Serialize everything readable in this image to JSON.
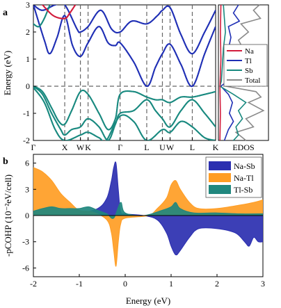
{
  "colors": {
    "na": "#d21c3c",
    "tl": "#1f2fb5",
    "sb": "#18897f",
    "total": "#8a8a8a",
    "na_sb": "#2b2fb0",
    "na_tl": "#ff9d24",
    "tl_sb": "#20877e"
  },
  "chart_data": [
    {
      "type": "line",
      "panel_label": "a",
      "ylabel": "Energy (eV)",
      "ylim": [
        -2,
        3
      ],
      "yticks": [
        "-2",
        "-1",
        "0",
        "1",
        "2",
        "3"
      ],
      "kpoints": [
        "Γ",
        "X",
        "W",
        "K",
        "Γ",
        "L",
        "U",
        "W",
        "L",
        "K"
      ],
      "kpos": [
        0.0,
        0.172,
        0.258,
        0.3,
        0.476,
        0.622,
        0.708,
        0.75,
        0.872,
        1.0
      ],
      "fermi_level": 0,
      "series": [
        {
          "name": "Na",
          "color_key": "na"
        },
        {
          "name": "Tl",
          "color_key": "tl"
        },
        {
          "name": "Sb",
          "color_key": "sb"
        },
        {
          "name": "Total",
          "color_key": "total"
        }
      ],
      "bands": [
        {
          "color_key": "tl",
          "points": [
            [
              0.0,
              3.0
            ],
            [
              0.06,
              1.7
            ],
            [
              0.09,
              1.2
            ],
            [
              0.13,
              1.8
            ],
            [
              0.172,
              2.6
            ],
            [
              0.215,
              1.5
            ],
            [
              0.258,
              1.1
            ],
            [
              0.3,
              1.6
            ],
            [
              0.36,
              2.2
            ],
            [
              0.41,
              1.6
            ],
            [
              0.45,
              1.5
            ],
            [
              0.476,
              1.6
            ],
            [
              0.55,
              0.9
            ],
            [
              0.622,
              0.0
            ],
            [
              0.67,
              0.7
            ],
            [
              0.708,
              1.2
            ],
            [
              0.75,
              1.55
            ],
            [
              0.81,
              0.8
            ],
            [
              0.872,
              0.0
            ],
            [
              0.94,
              1.2
            ],
            [
              1.0,
              2.2
            ]
          ]
        },
        {
          "color_key": "tl",
          "points": [
            [
              0.0,
              3.0
            ],
            [
              0.05,
              2.8
            ],
            [
              0.12,
              3.0
            ],
            [
              0.172,
              3.0
            ],
            [
              0.24,
              2.1
            ],
            [
              0.258,
              2.0
            ],
            [
              0.3,
              2.2
            ],
            [
              0.37,
              2.8
            ],
            [
              0.43,
              2.1
            ],
            [
              0.476,
              2.0
            ],
            [
              0.54,
              2.4
            ],
            [
              0.622,
              2.3
            ],
            [
              0.68,
              2.6
            ],
            [
              0.708,
              2.8
            ],
            [
              0.75,
              2.9
            ],
            [
              0.81,
              1.9
            ],
            [
              0.872,
              1.2
            ],
            [
              0.94,
              2.0
            ],
            [
              1.0,
              2.8
            ]
          ]
        },
        {
          "color_key": "sb",
          "points": [
            [
              0.0,
              2.3
            ],
            [
              0.03,
              2.2
            ],
            [
              0.06,
              2.5
            ],
            [
              0.09,
              3.0
            ]
          ]
        },
        {
          "color_key": "na",
          "points": [
            [
              0.05,
              3.0
            ],
            [
              0.11,
              2.6
            ],
            [
              0.172,
              2.5
            ],
            [
              0.2,
              2.7
            ],
            [
              0.23,
              3.0
            ]
          ]
        },
        {
          "color_key": "sb",
          "points": [
            [
              0.0,
              0.0
            ],
            [
              0.05,
              -0.2
            ],
            [
              0.1,
              -0.8
            ],
            [
              0.14,
              -1.3
            ],
            [
              0.172,
              -1.4
            ],
            [
              0.21,
              -0.9
            ],
            [
              0.258,
              -0.2
            ],
            [
              0.3,
              -0.3
            ],
            [
              0.36,
              -1.0
            ],
            [
              0.41,
              -1.6
            ],
            [
              0.45,
              -1.2
            ],
            [
              0.476,
              -0.3
            ],
            [
              0.55,
              -0.2
            ],
            [
              0.622,
              -0.4
            ],
            [
              0.67,
              -0.5
            ],
            [
              0.708,
              -0.5
            ],
            [
              0.75,
              -0.6
            ],
            [
              0.81,
              -0.4
            ],
            [
              0.872,
              -0.4
            ],
            [
              0.94,
              -0.3
            ],
            [
              1.0,
              -0.2
            ]
          ]
        },
        {
          "color_key": "sb",
          "points": [
            [
              0.0,
              0.0
            ],
            [
              0.05,
              -0.3
            ],
            [
              0.1,
              -1.0
            ],
            [
              0.15,
              -1.6
            ],
            [
              0.172,
              -1.8
            ],
            [
              0.21,
              -1.6
            ],
            [
              0.258,
              -1.5
            ],
            [
              0.3,
              -1.2
            ],
            [
              0.36,
              -1.5
            ],
            [
              0.41,
              -2.0
            ],
            [
              0.45,
              -1.4
            ],
            [
              0.476,
              -1.0
            ],
            [
              0.55,
              -0.9
            ],
            [
              0.622,
              -0.5
            ],
            [
              0.67,
              -0.9
            ],
            [
              0.708,
              -1.2
            ],
            [
              0.75,
              -1.5
            ],
            [
              0.81,
              -0.9
            ],
            [
              0.872,
              -0.5
            ],
            [
              0.94,
              -1.0
            ],
            [
              1.0,
              -1.5
            ]
          ]
        },
        {
          "color_key": "sb",
          "points": [
            [
              0.0,
              -0.05
            ],
            [
              0.06,
              -0.6
            ],
            [
              0.12,
              -1.6
            ],
            [
              0.172,
              -2.0
            ],
            [
              0.258,
              -1.8
            ],
            [
              0.3,
              -1.7
            ],
            [
              0.36,
              -1.9
            ],
            [
              0.4,
              -2.0
            ],
            [
              0.476,
              -1.1
            ],
            [
              0.55,
              -1.3
            ],
            [
              0.622,
              -2.0
            ],
            [
              0.708,
              -1.6
            ],
            [
              0.75,
              -1.7
            ],
            [
              0.81,
              -1.3
            ],
            [
              0.872,
              -1.5
            ],
            [
              0.94,
              -1.9
            ],
            [
              1.0,
              -2.0
            ]
          ]
        }
      ],
      "edos_label": "EDOS",
      "edos_curves": [
        {
          "color_key": "total",
          "points": [
            [
              0.82,
              3.0
            ],
            [
              0.7,
              2.8
            ],
            [
              0.84,
              2.5
            ],
            [
              0.45,
              2.3
            ],
            [
              0.6,
              2.0
            ],
            [
              0.4,
              1.7
            ],
            [
              0.55,
              1.2
            ],
            [
              0.45,
              0.6
            ],
            [
              0.4,
              0.2
            ],
            [
              0.15,
              0.0
            ],
            [
              0.75,
              -0.2
            ],
            [
              0.85,
              -0.4
            ],
            [
              0.6,
              -0.6
            ],
            [
              0.9,
              -0.9
            ],
            [
              0.55,
              -1.2
            ],
            [
              0.7,
              -1.5
            ],
            [
              0.35,
              -1.7
            ],
            [
              0.55,
              -2.0
            ]
          ]
        },
        {
          "color_key": "tl",
          "points": [
            [
              0.4,
              3.0
            ],
            [
              0.3,
              2.7
            ],
            [
              0.42,
              2.4
            ],
            [
              0.2,
              2.2
            ],
            [
              0.25,
              1.8
            ],
            [
              0.18,
              1.2
            ],
            [
              0.15,
              0.6
            ],
            [
              0.12,
              0.1
            ],
            [
              0.05,
              0.0
            ],
            [
              0.2,
              -0.3
            ],
            [
              0.28,
              -0.6
            ],
            [
              0.22,
              -1.0
            ],
            [
              0.3,
              -1.3
            ],
            [
              0.2,
              -1.6
            ],
            [
              0.12,
              -2.0
            ]
          ]
        },
        {
          "color_key": "sb",
          "points": [
            [
              0.1,
              3.0
            ],
            [
              0.12,
              2.5
            ],
            [
              0.14,
              2.0
            ],
            [
              0.1,
              1.4
            ],
            [
              0.08,
              0.8
            ],
            [
              0.06,
              0.2
            ],
            [
              0.03,
              0.0
            ],
            [
              0.3,
              -0.3
            ],
            [
              0.55,
              -0.6
            ],
            [
              0.4,
              -0.9
            ],
            [
              0.48,
              -1.2
            ],
            [
              0.35,
              -1.5
            ],
            [
              0.4,
              -1.8
            ],
            [
              0.3,
              -2.0
            ]
          ]
        },
        {
          "color_key": "na",
          "points": [
            [
              0.05,
              3.0
            ],
            [
              0.04,
              2.0
            ],
            [
              0.05,
              1.0
            ],
            [
              0.03,
              0.0
            ],
            [
              0.04,
              -1.0
            ],
            [
              0.03,
              -2.0
            ]
          ]
        }
      ]
    },
    {
      "type": "area",
      "panel_label": "b",
      "xlabel": "Energy (eV)",
      "ylabel": "-pCOHP (10⁻²eV/cell)",
      "xlim": [
        -2,
        3
      ],
      "ylim": [
        -7,
        7
      ],
      "xticks": [
        "-2",
        "-1",
        "0",
        "1",
        "2",
        "3"
      ],
      "yticks": [
        "-6",
        "-3",
        "0",
        "3",
        "6"
      ],
      "series": [
        {
          "name": "Na-Sb",
          "color_key": "na_sb",
          "points": [
            [
              -2.0,
              0.3
            ],
            [
              -1.5,
              0.2
            ],
            [
              -1.0,
              0.3
            ],
            [
              -0.6,
              0.8
            ],
            [
              -0.4,
              2.0
            ],
            [
              -0.3,
              4.0
            ],
            [
              -0.25,
              5.5
            ],
            [
              -0.2,
              6.0
            ],
            [
              -0.15,
              3.0
            ],
            [
              -0.1,
              0.5
            ],
            [
              0.0,
              0.2
            ],
            [
              0.4,
              0.0
            ],
            [
              0.7,
              -0.5
            ],
            [
              0.9,
              -2.0
            ],
            [
              1.0,
              -3.5
            ],
            [
              1.1,
              -4.5
            ],
            [
              1.2,
              -4.0
            ],
            [
              1.4,
              -2.5
            ],
            [
              1.6,
              -1.5
            ],
            [
              2.0,
              -1.5
            ],
            [
              2.4,
              -2.0
            ],
            [
              2.6,
              -3.0
            ],
            [
              2.7,
              -3.5
            ],
            [
              2.8,
              -2.5
            ],
            [
              2.9,
              -3.0
            ],
            [
              3.0,
              -3.0
            ]
          ]
        },
        {
          "name": "Na-Tl",
          "color_key": "na_tl",
          "points": [
            [
              -2.0,
              5.5
            ],
            [
              -1.8,
              5.0
            ],
            [
              -1.6,
              4.0
            ],
            [
              -1.4,
              2.5
            ],
            [
              -1.2,
              1.5
            ],
            [
              -1.0,
              0.6
            ],
            [
              -0.7,
              0.4
            ],
            [
              -0.4,
              -0.5
            ],
            [
              -0.3,
              -2.0
            ],
            [
              -0.25,
              -4.0
            ],
            [
              -0.2,
              -5.8
            ],
            [
              -0.15,
              -3.0
            ],
            [
              -0.1,
              -1.0
            ],
            [
              0.0,
              -0.3
            ],
            [
              0.5,
              0.0
            ],
            [
              0.7,
              0.8
            ],
            [
              0.9,
              2.0
            ],
            [
              1.0,
              3.5
            ],
            [
              1.1,
              4.0
            ],
            [
              1.2,
              3.0
            ],
            [
              1.4,
              1.5
            ],
            [
              1.6,
              0.8
            ],
            [
              2.0,
              0.8
            ],
            [
              2.5,
              1.2
            ],
            [
              2.8,
              1.5
            ],
            [
              3.0,
              1.8
            ]
          ]
        },
        {
          "name": "Tl-Sb",
          "color_key": "tl_sb",
          "points": [
            [
              -2.0,
              0.5
            ],
            [
              -1.8,
              0.8
            ],
            [
              -1.6,
              1.0
            ],
            [
              -1.4,
              0.8
            ],
            [
              -1.2,
              0.8
            ],
            [
              -1.0,
              0.8
            ],
            [
              -0.8,
              1.0
            ],
            [
              -0.6,
              0.6
            ],
            [
              -0.4,
              0.2
            ],
            [
              -0.25,
              -0.3
            ],
            [
              -0.1,
              1.5
            ],
            [
              0.0,
              0.3
            ],
            [
              0.4,
              0.0
            ],
            [
              0.8,
              0.6
            ],
            [
              1.0,
              1.0
            ],
            [
              1.1,
              1.5
            ],
            [
              1.2,
              0.8
            ],
            [
              1.5,
              0.3
            ],
            [
              2.0,
              0.3
            ],
            [
              2.5,
              0.2
            ],
            [
              3.0,
              0.2
            ]
          ]
        }
      ]
    }
  ]
}
